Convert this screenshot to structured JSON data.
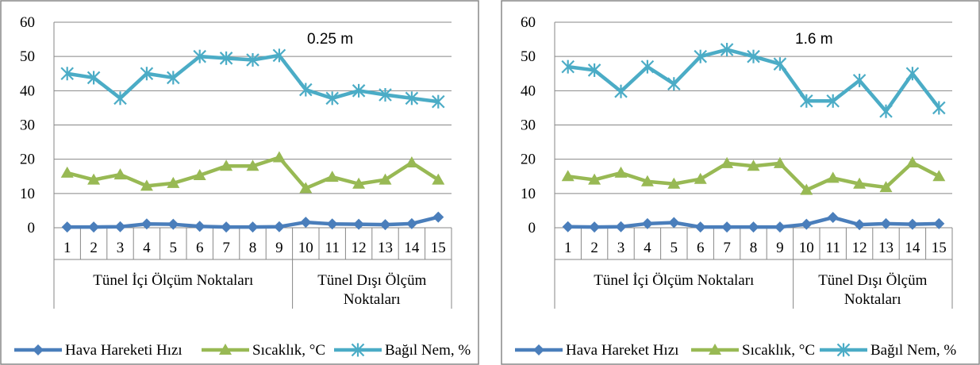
{
  "chart_data": [
    {
      "type": "line",
      "annotation": "0.25 m",
      "ylim": [
        0,
        60
      ],
      "yticks": [
        0,
        10,
        20,
        30,
        40,
        50,
        60
      ],
      "categories": [
        "1",
        "2",
        "3",
        "4",
        "5",
        "6",
        "7",
        "8",
        "9",
        "10",
        "11",
        "12",
        "13",
        "14",
        "15"
      ],
      "groups": [
        {
          "label": "Tünel İçi Ölçüm Noktaları",
          "span": [
            1,
            9
          ]
        },
        {
          "label": "Tünel Dışı Ölçüm Noktaları",
          "span": [
            10,
            15
          ]
        }
      ],
      "grid": "horizontal",
      "legend_position": "bottom",
      "series": [
        {
          "name": "Hava Hareketi Hızı",
          "color": "#4a7ebb",
          "marker": "diamond",
          "values": [
            0.2,
            0.2,
            0.3,
            1.1,
            1.0,
            0.4,
            0.2,
            0.2,
            0.3,
            1.6,
            1.1,
            1.0,
            0.9,
            1.2,
            3.1
          ]
        },
        {
          "name": "Sıcaklık, °C",
          "color": "#98b954",
          "marker": "triangle",
          "values": [
            16.0,
            14.0,
            15.5,
            12.2,
            13.0,
            15.3,
            18.0,
            18.0,
            20.5,
            11.5,
            14.8,
            12.8,
            14.0,
            19.0,
            14.0
          ]
        },
        {
          "name": "Bağıl Nem, %",
          "color": "#4bacc6",
          "marker": "star",
          "values": [
            45.0,
            43.8,
            37.8,
            45.0,
            43.8,
            50.0,
            49.5,
            49.0,
            50.3,
            40.3,
            37.8,
            40.0,
            38.8,
            37.8,
            36.8
          ]
        }
      ]
    },
    {
      "type": "line",
      "annotation": "1.6 m",
      "ylim": [
        0,
        60
      ],
      "yticks": [
        0,
        10,
        20,
        30,
        40,
        50,
        60
      ],
      "categories": [
        "1",
        "2",
        "3",
        "4",
        "5",
        "6",
        "7",
        "8",
        "9",
        "10",
        "11",
        "12",
        "13",
        "14",
        "15"
      ],
      "groups": [
        {
          "label": "Tünel İçi Ölçüm Noktaları",
          "span": [
            1,
            9
          ]
        },
        {
          "label": "Tünel Dışı Ölçüm Noktaları",
          "span": [
            10,
            15
          ]
        }
      ],
      "grid": "horizontal",
      "legend_position": "bottom",
      "series": [
        {
          "name": "Hava Hareket Hızı",
          "color": "#4a7ebb",
          "marker": "diamond",
          "values": [
            0.3,
            0.2,
            0.3,
            1.2,
            1.5,
            0.2,
            0.2,
            0.2,
            0.2,
            1.0,
            3.0,
            0.9,
            1.2,
            1.0,
            1.2
          ]
        },
        {
          "name": "Sıcaklık, °C",
          "color": "#98b954",
          "marker": "triangle",
          "values": [
            15.0,
            14.0,
            16.0,
            13.5,
            12.8,
            14.2,
            18.8,
            18.0,
            18.8,
            11.0,
            14.5,
            12.8,
            11.8,
            19.0,
            15.0
          ]
        },
        {
          "name": "Bağıl Nem, %",
          "color": "#4bacc6",
          "marker": "star",
          "values": [
            47.0,
            46.0,
            39.8,
            47.0,
            42.0,
            50.0,
            52.0,
            50.0,
            47.8,
            37.0,
            37.0,
            43.0,
            34.0,
            45.0,
            35.0
          ]
        }
      ]
    }
  ]
}
